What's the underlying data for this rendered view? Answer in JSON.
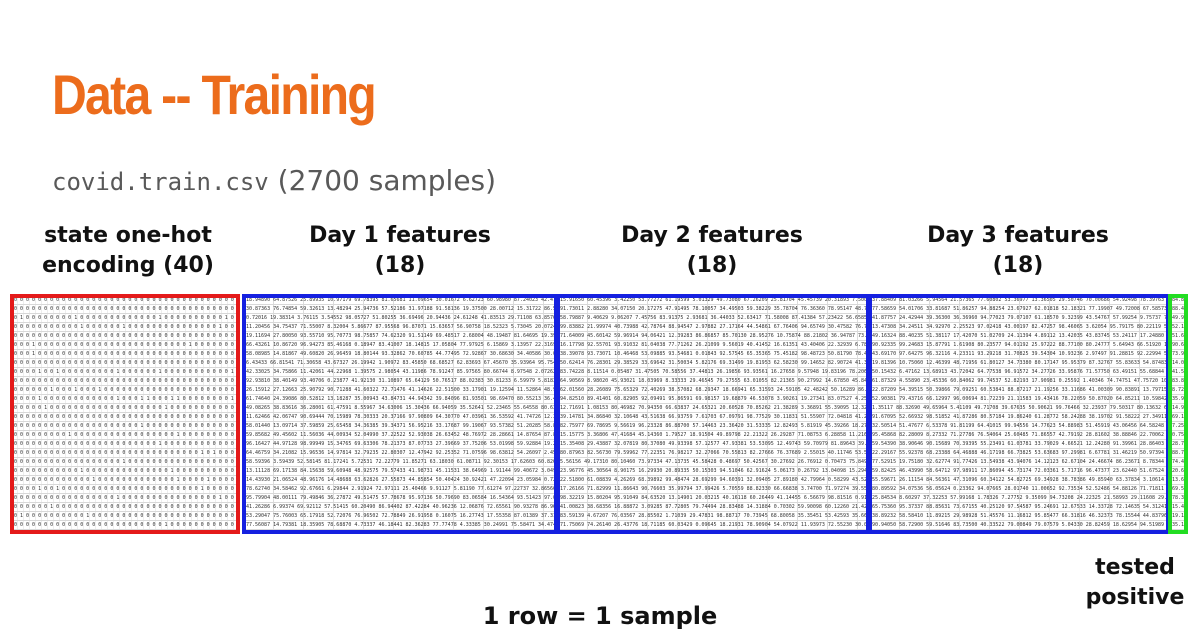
{
  "title": "Data -- Training",
  "subtitle": {
    "filename": "covid.train.csv",
    "count": "(2700 samples)"
  },
  "labels": {
    "state": [
      "state one-hot",
      "encoding (40)"
    ],
    "day1": [
      "Day 1 features",
      "(18)"
    ],
    "day2": [
      "Day 2 features",
      "(18)"
    ],
    "day3": [
      "Day 3 features",
      "(18)"
    ],
    "positive": [
      "tested",
      "positive"
    ],
    "row": "1 row = 1 sample"
  },
  "colors": {
    "title": "#ec6c1c",
    "state_box": "#e41a1a",
    "feature_box": "#1520e0",
    "target_box": "#22dd22"
  }
}
